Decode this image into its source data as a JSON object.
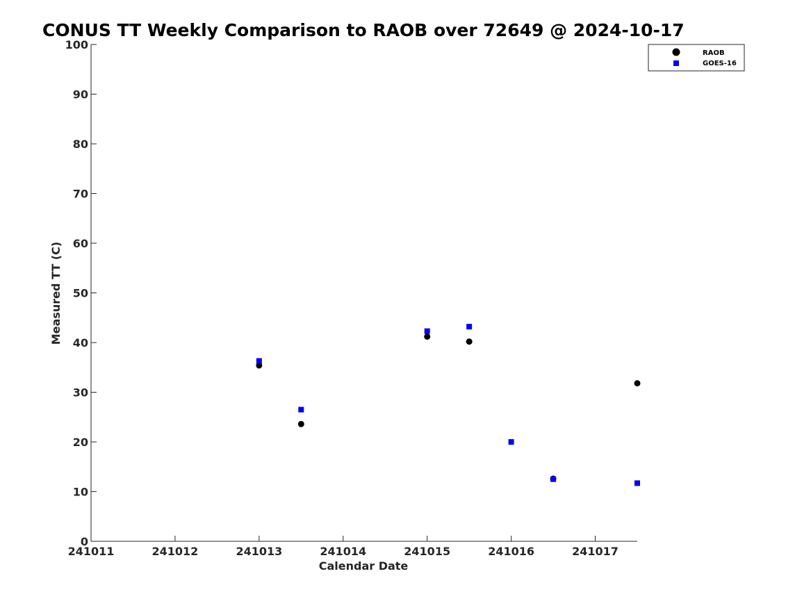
{
  "colors": {
    "raob": "#000000",
    "goes": "#0000ff",
    "axis": "#262626"
  },
  "chart_data": {
    "type": "scatter",
    "title": "CONUS TT Weekly Comparison to RAOB over 72649 @ 2024-10-17",
    "xlabel": "Calendar Date",
    "ylabel": "Measured TT (C)",
    "xlim": [
      241011,
      241017.5
    ],
    "ylim": [
      0,
      100
    ],
    "xticks": [
      241011,
      241012,
      241013,
      241014,
      241015,
      241016,
      241017
    ],
    "xtick_labels": [
      "241011",
      "241012",
      "241013",
      "241014",
      "241015",
      "241016",
      "241017"
    ],
    "yticks": [
      0,
      10,
      20,
      30,
      40,
      50,
      60,
      70,
      80,
      90,
      100
    ],
    "ytick_labels": [
      "0",
      "10",
      "20",
      "30",
      "40",
      "50",
      "60",
      "70",
      "80",
      "90",
      "100"
    ],
    "grid": false,
    "legend_position": "top-right",
    "series": [
      {
        "name": "RAOB",
        "marker": "circle",
        "color": "#000000",
        "points": [
          {
            "x": 241013,
            "y": 35.4
          },
          {
            "x": 241013.5,
            "y": 23.6
          },
          {
            "x": 241015,
            "y": 41.2
          },
          {
            "x": 241015.5,
            "y": 40.2
          },
          {
            "x": 241016.5,
            "y": 12.6
          },
          {
            "x": 241017.5,
            "y": 31.8
          }
        ]
      },
      {
        "name": "GOES-16",
        "marker": "square",
        "color": "#0000ff",
        "points": [
          {
            "x": 241013,
            "y": 36.3
          },
          {
            "x": 241013.5,
            "y": 26.5
          },
          {
            "x": 241015,
            "y": 42.3
          },
          {
            "x": 241015.5,
            "y": 43.2
          },
          {
            "x": 241016,
            "y": 20.0
          },
          {
            "x": 241016.5,
            "y": 12.5
          },
          {
            "x": 241017.5,
            "y": 11.7
          }
        ]
      }
    ]
  }
}
